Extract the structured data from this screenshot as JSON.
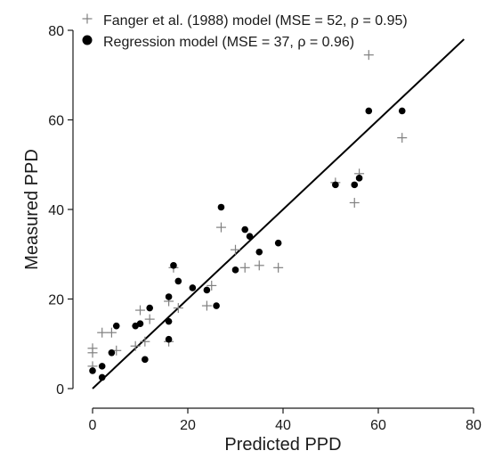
{
  "chart_data": {
    "type": "scatter",
    "xlabel": "Predicted PPD",
    "ylabel": "Measured PPD",
    "xlim": [
      0,
      80
    ],
    "ylim": [
      0,
      80
    ],
    "x_ticks": [
      0,
      20,
      40,
      60,
      80
    ],
    "y_ticks": [
      0,
      20,
      40,
      60,
      80
    ],
    "grid": false,
    "legend_position": "top-left",
    "series": [
      {
        "name": "Fanger et al. (1988) model (MSE = 52, ρ = 0.95)",
        "marker": "plus",
        "color": "#808080",
        "x": [
          0,
          0,
          0,
          2,
          4,
          5,
          10,
          12,
          11,
          9,
          16,
          16,
          18,
          17,
          24,
          25,
          27,
          30,
          32,
          35,
          39,
          51,
          55,
          56,
          58,
          65
        ],
        "y": [
          9,
          8,
          5,
          12.5,
          12.5,
          8.5,
          17.5,
          15.5,
          10.5,
          9.5,
          19.5,
          10.5,
          18,
          27,
          18.5,
          23,
          36,
          31,
          27,
          27.5,
          27,
          46,
          41.5,
          48,
          74.5,
          56
        ]
      },
      {
        "name": "Regression model (MSE = 37, ρ = 0.96)",
        "marker": "circle",
        "color": "#000000",
        "x": [
          0,
          2,
          2,
          4,
          5,
          9,
          10,
          11,
          12,
          16,
          16,
          16,
          17,
          18,
          21,
          24,
          26,
          27,
          30,
          32,
          33,
          35,
          39,
          51,
          55,
          56,
          58,
          65
        ],
        "y": [
          4,
          2.5,
          5,
          8,
          14,
          14,
          14.5,
          6.5,
          18,
          20.5,
          15,
          11,
          27.5,
          24,
          22.5,
          22,
          18.5,
          40.5,
          26.5,
          35.5,
          34,
          30.5,
          32.5,
          45.5,
          45.5,
          47,
          62,
          62
        ]
      }
    ],
    "fit_line": {
      "x": [
        0,
        78
      ],
      "y": [
        0,
        78
      ]
    }
  }
}
